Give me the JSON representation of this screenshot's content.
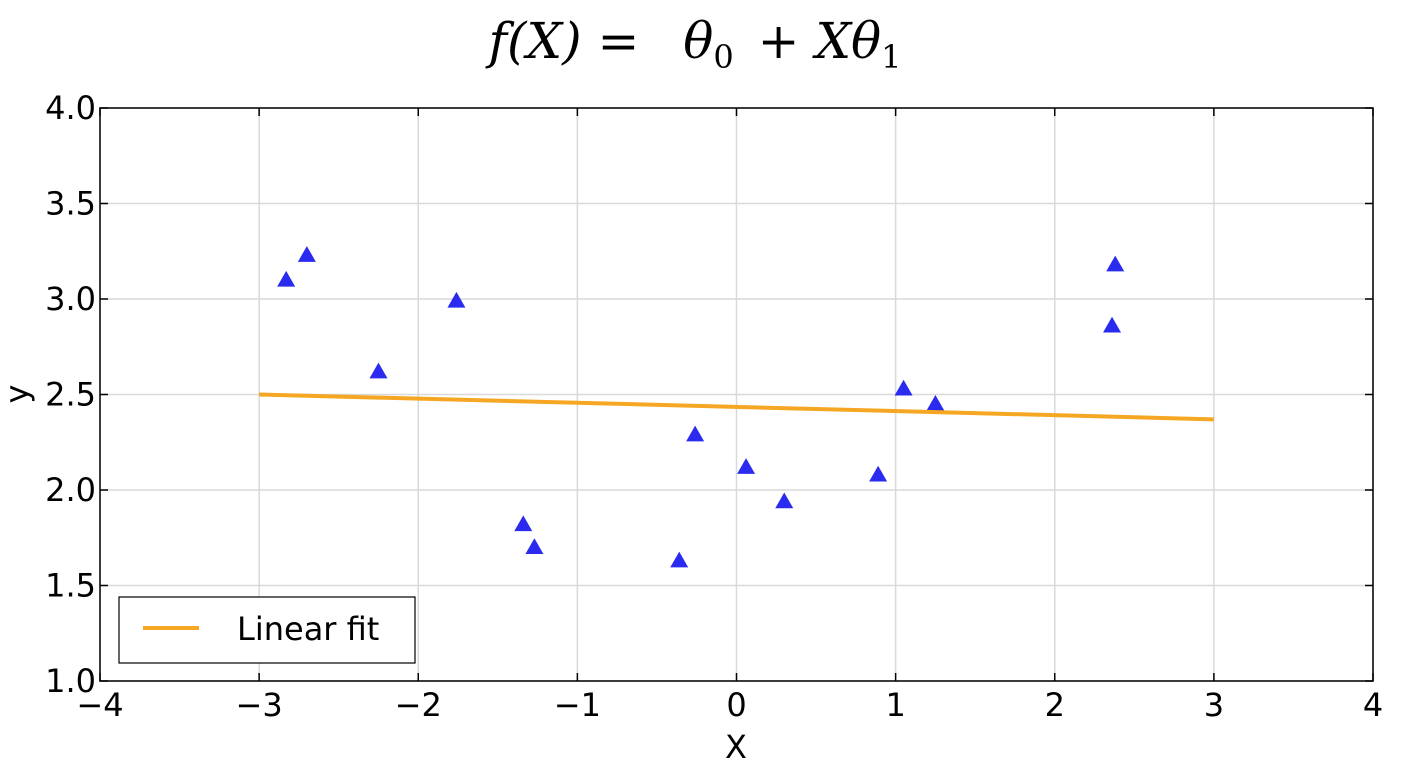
{
  "chart_data": {
    "type": "scatter",
    "title": "f(X) = θ0 + Xθ1",
    "title_parts": {
      "lhs": "f(X) =",
      "theta": "θ",
      "sub0": "0",
      "mid": "+ Xθ",
      "sub1": "1"
    },
    "xlabel": "X",
    "ylabel": "y",
    "xlim": [
      -4,
      4
    ],
    "ylim": [
      1.0,
      4.0
    ],
    "xticks": [
      -4,
      -3,
      -2,
      -1,
      0,
      1,
      2,
      3,
      4
    ],
    "xtick_labels": [
      "−4",
      "−3",
      "−2",
      "−1",
      "0",
      "1",
      "2",
      "3",
      "4"
    ],
    "yticks": [
      1.0,
      1.5,
      2.0,
      2.5,
      3.0,
      3.5,
      4.0
    ],
    "ytick_labels": [
      "1.0",
      "1.5",
      "2.0",
      "2.5",
      "3.0",
      "3.5",
      "4.0"
    ],
    "grid": true,
    "legend_position": "bottom-left",
    "series": [
      {
        "name": "",
        "kind": "scatter",
        "marker": "triangle",
        "color": "#2b2bf0",
        "points": [
          {
            "x": -2.83,
            "y": 3.1
          },
          {
            "x": -2.7,
            "y": 3.23
          },
          {
            "x": -2.25,
            "y": 2.62
          },
          {
            "x": -1.76,
            "y": 2.99
          },
          {
            "x": -1.34,
            "y": 1.82
          },
          {
            "x": -1.27,
            "y": 1.7
          },
          {
            "x": -0.36,
            "y": 1.63
          },
          {
            "x": -0.26,
            "y": 2.29
          },
          {
            "x": 0.06,
            "y": 2.12
          },
          {
            "x": 0.3,
            "y": 1.94
          },
          {
            "x": 0.89,
            "y": 2.08
          },
          {
            "x": 1.05,
            "y": 2.53
          },
          {
            "x": 1.25,
            "y": 2.45
          },
          {
            "x": 2.36,
            "y": 2.86
          },
          {
            "x": 2.38,
            "y": 3.18
          }
        ]
      },
      {
        "name": "Linear fit",
        "kind": "line",
        "color": "#f5a623",
        "points": [
          {
            "x": -3.0,
            "y": 2.5
          },
          {
            "x": 3.0,
            "y": 2.37
          }
        ]
      }
    ]
  }
}
